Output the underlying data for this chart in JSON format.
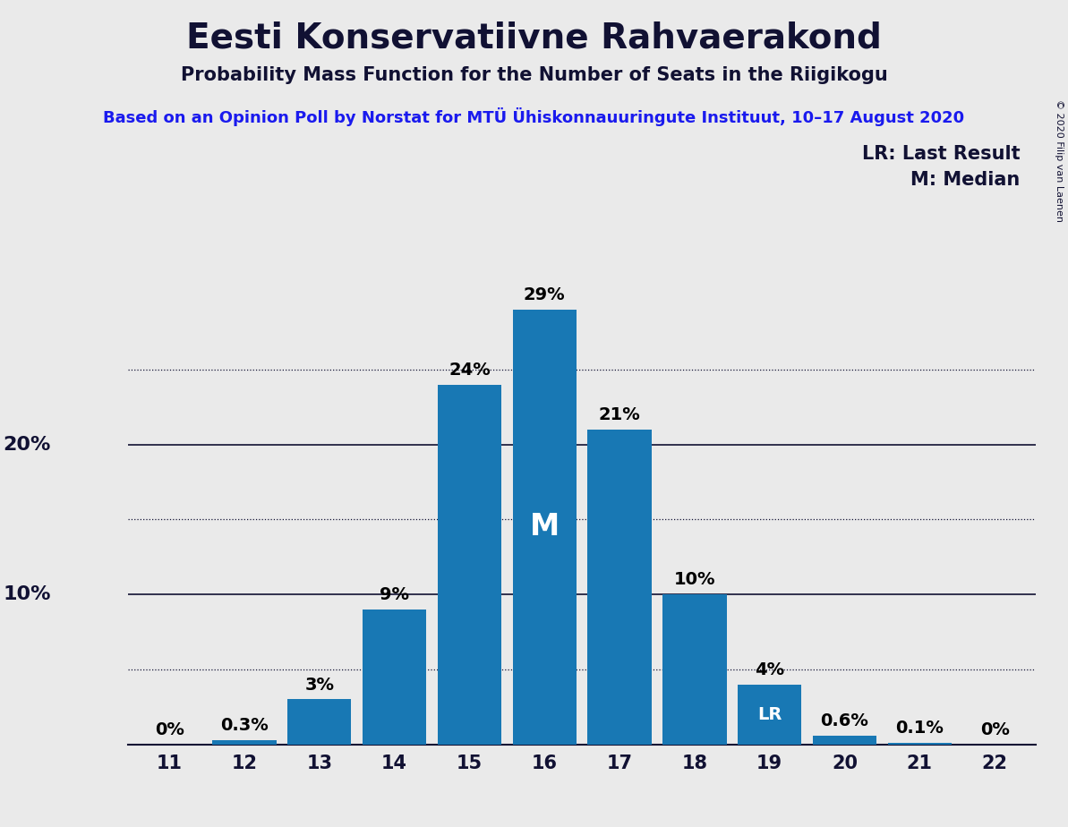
{
  "title": "Eesti Konservatiivne Rahvaerakond",
  "subtitle": "Probability Mass Function for the Number of Seats in the Riigikogu",
  "source_line": "Based on an Opinion Poll by Norstat for MTÜ Ühiskonnauuringute Instituut, 10–17 August 2020",
  "seats": [
    11,
    12,
    13,
    14,
    15,
    16,
    17,
    18,
    19,
    20,
    21,
    22
  ],
  "probabilities": [
    0.0,
    0.3,
    3.0,
    9.0,
    24.0,
    29.0,
    21.0,
    10.0,
    4.0,
    0.6,
    0.1,
    0.0
  ],
  "labels": [
    "0%",
    "0.3%",
    "3%",
    "9%",
    "24%",
    "29%",
    "21%",
    "10%",
    "4%",
    "0.6%",
    "0.1%",
    "0%"
  ],
  "bar_color": "#1878b4",
  "median_seat": 16,
  "lr_seat": 19,
  "background_color": "#eaeaea",
  "legend_lr": "LR: Last Result",
  "legend_m": "M: Median",
  "copyright": "© 2020 Filip van Laenen",
  "ylim_max": 32,
  "solid_ticks": [
    10,
    20
  ],
  "dotted_ticks": [
    5,
    15,
    25
  ],
  "ylabel_ticks": [
    10,
    20
  ],
  "ylabel_labels": [
    "10%",
    "20%"
  ],
  "source_color": "#1a1aee",
  "title_fontsize": 28,
  "subtitle_fontsize": 15,
  "source_fontsize": 13,
  "bar_label_fontsize": 14,
  "axis_tick_fontsize": 15,
  "ylabel_fontsize": 16,
  "legend_fontsize": 15,
  "copyright_fontsize": 8
}
